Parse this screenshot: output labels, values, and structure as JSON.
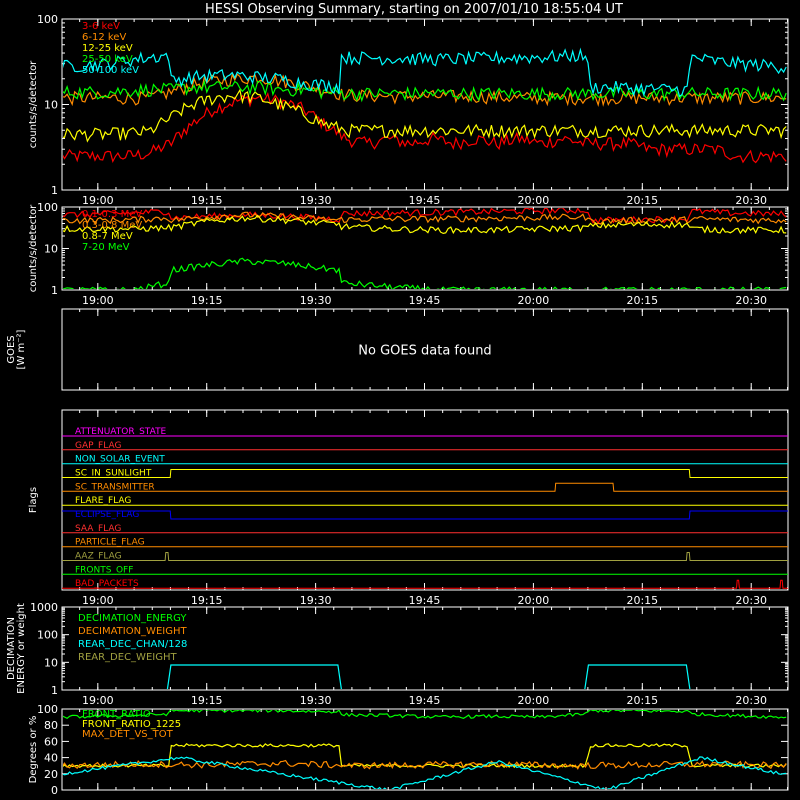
{
  "figure": {
    "title": "HESSI Observing Summary, starting on 2007/01/10 18:55:04 UT",
    "time_ticks": [
      "19:00",
      "19:15",
      "19:30",
      "19:45",
      "20:00",
      "20:15",
      "20:30"
    ],
    "colors": {
      "background": "#000000",
      "axes": "#ffffff",
      "red": "#ff0000",
      "orange": "#ff8c00",
      "yellow": "#ffff00",
      "green": "#00ff00",
      "cyan": "#00ffff",
      "magenta": "#ff00ff",
      "blue": "#0000ff",
      "olive": "#a0a040",
      "bright_red": "#ff3030"
    }
  },
  "chart_data": [
    {
      "type": "line",
      "panel": "lo-energy-count-rates",
      "ylabel": "counts/s/detector",
      "yscale": "log",
      "ylim": [
        1,
        100
      ],
      "ytick_labels": [
        "1",
        "10",
        "100"
      ],
      "x_unit": "UT minutes after 18:55:04",
      "xlim": [
        0,
        100
      ],
      "series": [
        {
          "name": "3-6 keV",
          "color": "#ff0000",
          "x": [
            0,
            3,
            6,
            9,
            12,
            15,
            18,
            21,
            24,
            27,
            30,
            33,
            36,
            39,
            42,
            45,
            48,
            51,
            54,
            57,
            60,
            63,
            66,
            69,
            72,
            75,
            78,
            81,
            84,
            87,
            90,
            93,
            96,
            99
          ],
          "values": [
            2.5,
            2.5,
            2.5,
            2.5,
            2.7,
            3.5,
            6,
            9,
            11,
            12,
            11,
            9,
            6,
            4,
            3.5,
            4,
            3.5,
            4,
            3.5,
            4,
            3.5,
            4,
            3.5,
            4,
            3.5,
            3.5,
            3.5,
            3,
            3,
            3,
            3,
            2.5,
            2.5,
            2.5
          ]
        },
        {
          "name": "6-12 keV",
          "color": "#ff8c00",
          "x": [
            0,
            6,
            12,
            15,
            18,
            21,
            24,
            27,
            30,
            33,
            36,
            39,
            45,
            51,
            57,
            63,
            69,
            75,
            81,
            87,
            93,
            99
          ],
          "values": [
            12,
            12,
            12,
            14,
            17,
            19,
            20,
            21,
            19,
            17,
            15,
            13,
            12.5,
            12.5,
            12.5,
            12,
            12,
            12,
            12,
            12,
            12,
            12
          ]
        },
        {
          "name": "12-25 keV",
          "color": "#ffff00",
          "x": [
            0,
            6,
            12,
            15,
            18,
            21,
            24,
            27,
            30,
            33,
            36,
            39,
            45,
            51,
            57,
            63,
            69,
            75,
            81,
            87,
            93,
            99
          ],
          "values": [
            4.5,
            4.5,
            4.8,
            7,
            10,
            12,
            13,
            12,
            10,
            8,
            6,
            5,
            5,
            5,
            5,
            5,
            5,
            5,
            5,
            5,
            5,
            5
          ]
        },
        {
          "name": "25-50 keV",
          "color": "#00ff00",
          "x": [
            0,
            6,
            12,
            15,
            18,
            21,
            24,
            27,
            30,
            33,
            36,
            39,
            45,
            51,
            57,
            63,
            69,
            75,
            81,
            87,
            93,
            99
          ],
          "values": [
            14,
            14,
            15,
            15,
            16,
            16,
            16,
            16,
            15,
            15,
            14,
            13.5,
            13.5,
            13.5,
            13.5,
            13.5,
            13.5,
            13.5,
            13.5,
            13.5,
            13.5,
            13.5
          ]
        },
        {
          "name": "50-100 keV",
          "color": "#00ffff",
          "x": [
            0,
            3,
            6,
            9,
            14.9,
            15,
            18,
            21,
            24,
            27,
            30,
            33,
            36,
            38.4,
            38.5,
            45,
            52,
            59,
            66,
            72.4,
            72.5,
            76,
            80,
            84,
            86.4,
            86.5,
            90,
            94,
            99
          ],
          "values": [
            28,
            29,
            30,
            33,
            38,
            19,
            21,
            22,
            22,
            21,
            20,
            18,
            17,
            16,
            36,
            35,
            34,
            35,
            36,
            38,
            16,
            16,
            15.5,
            15,
            15,
            36,
            32,
            30,
            28
          ]
        }
      ]
    },
    {
      "type": "line",
      "panel": "hi-energy-count-rates",
      "ylabel": "counts/s/detector",
      "yscale": "log",
      "ylim": [
        1,
        100
      ],
      "ytick_labels": [
        "1",
        "10",
        "100"
      ],
      "x_unit": "UT minutes after 18:55:04",
      "xlim": [
        0,
        100
      ],
      "series": [
        {
          "name": "0.1-0.3 MeV",
          "color": "#ff0000",
          "x": [
            0,
            5,
            10,
            14.9,
            15,
            20,
            25,
            30,
            35,
            38.4,
            38.5,
            45,
            52,
            59,
            66,
            72.4,
            72.5,
            78,
            86.4,
            86.5,
            92,
            99
          ],
          "values": [
            65,
            68,
            72,
            80,
            55,
            60,
            65,
            62,
            55,
            50,
            70,
            72,
            75,
            78,
            82,
            85,
            48,
            50,
            52,
            80,
            72,
            68
          ]
        },
        {
          "name": "0.3-0.8 MeV",
          "color": "#ff8c00",
          "x": [
            0,
            5,
            10,
            14.9,
            15,
            20,
            25,
            30,
            35,
            38.4,
            38.5,
            45,
            52,
            59,
            66,
            72.4,
            72.5,
            78,
            86.4,
            86.5,
            92,
            99
          ],
          "values": [
            48,
            48,
            50,
            55,
            48,
            58,
            65,
            60,
            52,
            48,
            50,
            52,
            52,
            54,
            56,
            58,
            45,
            48,
            50,
            52,
            50,
            48
          ]
        },
        {
          "name": "0.8-7 MeV",
          "color": "#ffff00",
          "x": [
            0,
            5,
            10,
            14.9,
            15,
            20,
            25,
            30,
            35,
            38.4,
            38.5,
            45,
            52,
            59,
            66,
            72.4,
            72.5,
            78,
            86.4,
            86.5,
            92,
            99
          ],
          "values": [
            30,
            30,
            30,
            32,
            32,
            45,
            55,
            50,
            42,
            38,
            34,
            30,
            28,
            28,
            30,
            32,
            35,
            38,
            38,
            30,
            28,
            28
          ]
        },
        {
          "name": "7-20 MeV",
          "color": "#00ff00",
          "x": [
            0,
            5,
            10,
            14.9,
            15,
            20,
            25,
            30,
            35,
            38.4,
            38.5,
            45,
            52,
            59,
            66,
            72.4,
            72.5,
            78,
            86.4,
            86.5,
            92,
            99
          ],
          "values": [
            1,
            1,
            1,
            1.5,
            3,
            4,
            5,
            4.5,
            3.5,
            3,
            1.5,
            1.2,
            1,
            1,
            1,
            1,
            1,
            1,
            1,
            1,
            1,
            1
          ]
        }
      ]
    },
    {
      "type": "line",
      "panel": "goes",
      "ylabel_lines": [
        "GOES",
        "[W m⁻²]"
      ],
      "message": "No GOES data found"
    },
    {
      "type": "line",
      "panel": "flags",
      "ylabel": "Flags",
      "x_unit": "UT minutes after 18:55:04",
      "xlim": [
        0,
        100
      ],
      "series": [
        {
          "name": "ATTENUATOR_STATE",
          "color": "#ff00ff",
          "x": [
            0,
            100
          ],
          "values": [
            0,
            0
          ]
        },
        {
          "name": "GAP_FLAG",
          "color": "#ff3030",
          "x": [
            0,
            100
          ],
          "values": [
            0,
            0
          ]
        },
        {
          "name": "NON_SOLAR_EVENT",
          "color": "#00ffff",
          "x": [
            0,
            100
          ],
          "values": [
            0,
            0
          ]
        },
        {
          "name": "SC_IN_SUNLIGHT",
          "color": "#ffff00",
          "x": [
            0,
            14.9,
            15,
            86.4,
            86.5,
            100
          ],
          "values": [
            0,
            0,
            1,
            1,
            0,
            0
          ]
        },
        {
          "name": "SC_TRANSMITTER",
          "color": "#ff8c00",
          "x": [
            0,
            67.9,
            68,
            75.9,
            76,
            100
          ],
          "values": [
            0,
            0,
            1,
            1,
            0,
            0
          ]
        },
        {
          "name": "FLARE_FLAG",
          "color": "#ffff00",
          "x": [
            0,
            100
          ],
          "values": [
            0,
            0
          ]
        },
        {
          "name": "ECLIPSE_FLAG",
          "color": "#0000ff",
          "x": [
            0,
            14.9,
            15,
            86.4,
            86.5,
            100
          ],
          "values": [
            1,
            1,
            0,
            0,
            1,
            1
          ]
        },
        {
          "name": "SAA_FLAG",
          "color": "#ff3030",
          "x": [
            0,
            100
          ],
          "values": [
            0,
            0
          ]
        },
        {
          "name": "PARTICLE_FLAG",
          "color": "#ff8c00",
          "x": [
            0,
            100
          ],
          "values": [
            0,
            0
          ]
        },
        {
          "name": "AAZ_FLAG",
          "color": "#a0a040",
          "x": [
            0,
            14.2,
            14.3,
            14.6,
            14.7,
            86.0,
            86.1,
            86.4,
            86.5,
            100
          ],
          "values": [
            0,
            0,
            1,
            1,
            0,
            0,
            1,
            1,
            0,
            0
          ]
        },
        {
          "name": "FRONTS_OFF",
          "color": "#00ff00",
          "x": [
            0,
            100
          ],
          "values": [
            0,
            0
          ]
        },
        {
          "name": "BAD_PACKETS",
          "color": "#ff0000",
          "x": [
            0,
            92.9,
            93,
            93.2,
            93.3,
            98.9,
            99,
            99.2,
            99.3,
            100
          ],
          "values": [
            0,
            0,
            1,
            1,
            0,
            0,
            1,
            1,
            0,
            0
          ]
        }
      ]
    },
    {
      "type": "line",
      "panel": "decimation",
      "ylabel_lines": [
        "DECIMATION",
        "ENERGY or weight"
      ],
      "yscale": "log",
      "ylim": [
        1,
        1000
      ],
      "ytick_labels": [
        "1",
        "10",
        "100",
        "1000"
      ],
      "x_unit": "UT minutes after 18:55:04",
      "xlim": [
        0,
        100
      ],
      "series": [
        {
          "name": "DECIMATION_ENERGY",
          "color": "#00ff00",
          "x": [
            0,
            100
          ],
          "values": [
            1,
            1
          ]
        },
        {
          "name": "DECIMATION_WEIGHT",
          "color": "#ff8c00",
          "x": [
            0,
            100
          ],
          "values": [
            1,
            1
          ]
        },
        {
          "name": "REAR_DEC_CHAN/128",
          "color": "#00ffff",
          "x": [
            0,
            14.9,
            15,
            38.4,
            38.5,
            72.4,
            72.5,
            86.4,
            86.5,
            100
          ],
          "values": [
            1,
            1,
            8,
            8,
            1,
            1,
            8,
            8,
            1,
            1
          ]
        },
        {
          "name": "REAR_DEC_WEIGHT",
          "color": "#a0a040",
          "x": [
            0,
            14.9,
            15,
            38.4,
            38.5,
            72.4,
            72.5,
            86.4,
            86.5,
            100
          ],
          "values": [
            1,
            1,
            1,
            1,
            1,
            1,
            1,
            1,
            1,
            1
          ]
        }
      ]
    },
    {
      "type": "line",
      "panel": "ratios",
      "ylabel": "Degrees or %",
      "ylim": [
        0,
        100
      ],
      "ytick_labels": [
        "0",
        "20",
        "40",
        "60",
        "80",
        "100"
      ],
      "x_unit": "UT minutes after 18:55:04",
      "xlim": [
        0,
        100
      ],
      "series": [
        {
          "name": "FRONT_RATIO",
          "color": "#00ff00",
          "x": [
            0,
            5,
            10,
            14.9,
            15,
            20,
            25,
            30,
            35,
            38.4,
            38.5,
            45,
            52,
            59,
            66,
            72.4,
            72.5,
            78,
            86.4,
            86.5,
            92,
            99
          ],
          "values": [
            90,
            91,
            92,
            94,
            98,
            98,
            98,
            98,
            97,
            97,
            93,
            92,
            90,
            91,
            90,
            94,
            98,
            98,
            97,
            94,
            92,
            90
          ]
        },
        {
          "name": "FRONT_RATIO_1225",
          "color": "#ffff00",
          "x": [
            0,
            14.9,
            15,
            38.4,
            38.5,
            72.4,
            72.5,
            86.4,
            86.5,
            100
          ],
          "values": [
            30,
            30,
            55,
            55,
            30,
            30,
            55,
            55,
            30,
            30
          ]
        },
        {
          "name": "MAX_DET_VS_TOT",
          "color": "#ff8c00",
          "x": [
            0,
            10,
            20,
            30,
            40,
            50,
            60,
            70,
            80,
            90,
            99
          ],
          "values": [
            30,
            32,
            31,
            33,
            30,
            31,
            32,
            30,
            31,
            32,
            30
          ]
        },
        {
          "name": "",
          "color": "#00ffff",
          "x": [
            0,
            16,
            30,
            45,
            60,
            75,
            88,
            99
          ],
          "values": [
            20,
            40,
            20,
            0,
            35,
            0,
            40,
            20
          ]
        }
      ]
    }
  ]
}
